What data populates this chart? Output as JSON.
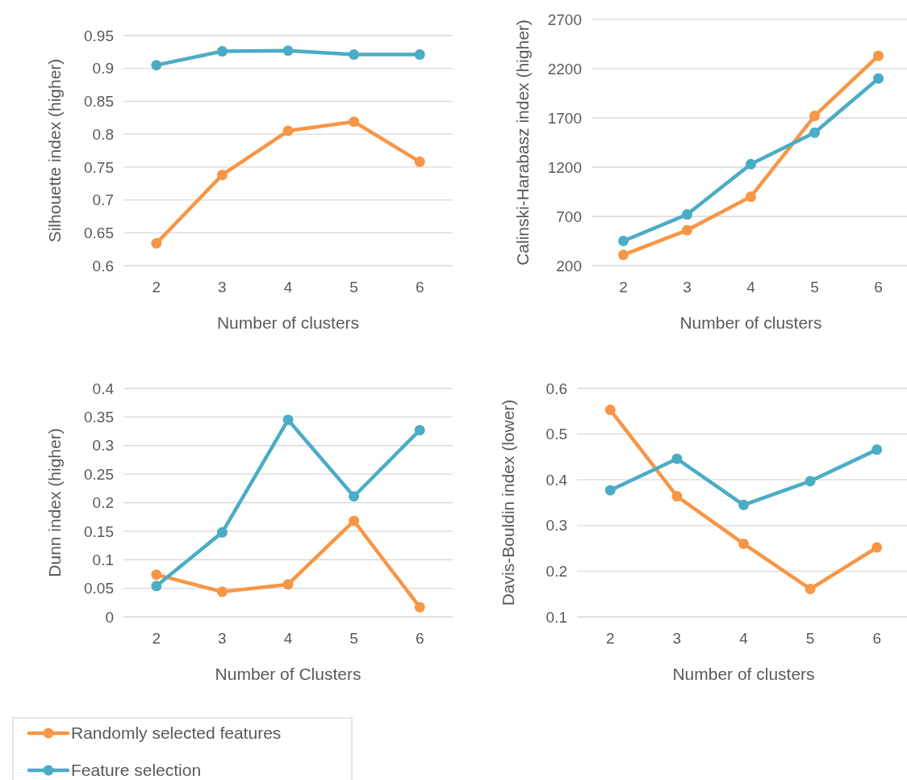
{
  "chart_data": [
    {
      "type": "line",
      "xlabel": "Number of clusters",
      "ylabel": "Silhouette index (higher)",
      "categories": [
        "2",
        "3",
        "4",
        "5",
        "6"
      ],
      "ylim": [
        0.6,
        0.95
      ],
      "yticks": [
        0.6,
        0.65,
        0.7,
        0.75,
        0.8,
        0.85,
        0.9,
        0.95
      ],
      "grid": "y",
      "marker": "circle",
      "legend": false,
      "series": [
        {
          "color": "#f79646",
          "values": [
            0.634,
            0.738,
            0.805,
            0.819,
            0.758
          ]
        },
        {
          "color": "#4bacc6",
          "values": [
            0.905,
            0.926,
            0.927,
            0.921,
            0.921
          ]
        }
      ]
    },
    {
      "type": "line",
      "xlabel": "Number of clusters",
      "ylabel": "Calinski-Harabasz index (higher)",
      "categories": [
        "2",
        "3",
        "4",
        "5",
        "6"
      ],
      "ylim": [
        200,
        2700
      ],
      "yticks": [
        200,
        700,
        1200,
        1700,
        2200,
        2700
      ],
      "grid": "y",
      "marker": "circle",
      "legend": false,
      "series": [
        {
          "color": "#f79646",
          "values": [
            310,
            560,
            900,
            1720,
            2330
          ]
        },
        {
          "color": "#4bacc6",
          "values": [
            450,
            720,
            1230,
            1550,
            2100
          ]
        }
      ]
    },
    {
      "type": "line",
      "xlabel": "Number of Clusters",
      "ylabel": "Dunn index (higher)",
      "categories": [
        "2",
        "3",
        "4",
        "5",
        "6"
      ],
      "ylim": [
        0,
        0.4
      ],
      "yticks": [
        0,
        0.05,
        0.1,
        0.15,
        0.2,
        0.25,
        0.3,
        0.35,
        0.4
      ],
      "grid": "y",
      "marker": "circle",
      "legend": "bottom",
      "series": [
        {
          "name": "Randomly selected features",
          "color": "#f79646",
          "values": [
            0.074,
            0.044,
            0.057,
            0.168,
            0.017
          ]
        },
        {
          "name": "Feature selection",
          "color": "#4bacc6",
          "values": [
            0.054,
            0.148,
            0.345,
            0.211,
            0.327
          ]
        }
      ]
    },
    {
      "type": "line",
      "xlabel": "Number of clusters",
      "ylabel": "Davis-Bouldin index (lower)",
      "categories": [
        "2",
        "3",
        "4",
        "5",
        "6"
      ],
      "ylim": [
        0.1,
        0.6
      ],
      "yticks": [
        0.1,
        0.2,
        0.3,
        0.4,
        0.5,
        0.6
      ],
      "grid": "y",
      "marker": "circle",
      "legend": false,
      "series": [
        {
          "color": "#f79646",
          "values": [
            0.553,
            0.364,
            0.26,
            0.161,
            0.252
          ]
        },
        {
          "color": "#4bacc6",
          "values": [
            0.377,
            0.446,
            0.345,
            0.397,
            0.466
          ]
        }
      ]
    }
  ]
}
